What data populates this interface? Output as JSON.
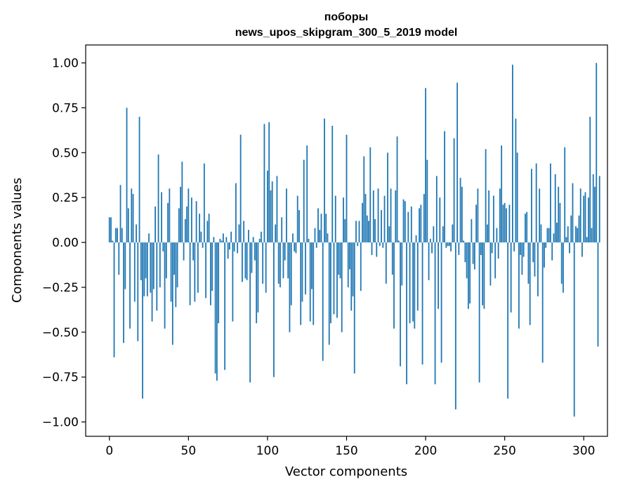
{
  "chart_data": {
    "type": "bar",
    "title": "поборы",
    "subtitle": "news_upos_skipgram_300_5_2019 model",
    "xlabel": "Vector components",
    "ylabel": "Components values",
    "xlim": [
      -15,
      315
    ],
    "ylim": [
      -1.08,
      1.1
    ],
    "x_ticks": [
      0,
      50,
      100,
      150,
      200,
      250,
      300
    ],
    "y_ticks": [
      -1.0,
      -0.75,
      -0.5,
      -0.25,
      0.0,
      0.25,
      0.5,
      0.75,
      1.0
    ],
    "x_tick_labels": [
      "0",
      "50",
      "100",
      "150",
      "200",
      "250",
      "300"
    ],
    "y_tick_labels": [
      "−1.00",
      "−0.75",
      "−0.50",
      "−0.25",
      "0.00",
      "0.25",
      "0.50",
      "0.75",
      "1.00"
    ],
    "bar_color": "#1f77b4",
    "values": [
      0.14,
      0.14,
      0.01,
      -0.64,
      0.08,
      0.08,
      -0.18,
      0.32,
      0.08,
      -0.56,
      -0.26,
      0.75,
      0.19,
      -0.48,
      0.3,
      0.27,
      -0.33,
      0.1,
      -0.55,
      0.7,
      -0.21,
      -0.87,
      -0.3,
      -0.2,
      -0.3,
      0.05,
      -0.28,
      -0.44,
      -0.26,
      0.2,
      -0.38,
      0.49,
      -0.25,
      0.28,
      -0.05,
      -0.48,
      -0.2,
      0.22,
      0.3,
      -0.33,
      -0.57,
      -0.18,
      -0.36,
      -0.25,
      0.19,
      0.31,
      0.45,
      -0.1,
      0.13,
      0.2,
      0.3,
      -0.35,
      0.25,
      -0.1,
      -0.33,
      0.23,
      -0.28,
      0.16,
      0.06,
      -0.03,
      0.44,
      -0.31,
      0.12,
      0.16,
      -0.35,
      -0.27,
      0.03,
      -0.73,
      -0.77,
      -0.45,
      0.02,
      0.01,
      0.05,
      -0.71,
      0.03,
      -0.09,
      -0.04,
      0.06,
      -0.44,
      -0.05,
      0.33,
      -0.06,
      0.1,
      0.6,
      -0.22,
      0.12,
      -0.2,
      -0.21,
      0.07,
      -0.78,
      -0.17,
      0.03,
      -0.1,
      -0.45,
      -0.39,
      0.02,
      0.06,
      -0.23,
      0.66,
      -0.28,
      0.4,
      0.67,
      0.29,
      0.34,
      -0.75,
      0.1,
      0.37,
      -0.23,
      -0.25,
      0.14,
      -0.2,
      -0.1,
      0.3,
      -0.2,
      -0.5,
      -0.35,
      0.05,
      -0.05,
      -0.06,
      0.26,
      0.18,
      -0.46,
      -0.33,
      0.46,
      -0.29,
      0.54,
      0.02,
      -0.44,
      -0.26,
      -0.46,
      0.08,
      -0.03,
      0.19,
      0.07,
      0.16,
      -0.66,
      0.69,
      0.16,
      0.05,
      -0.57,
      -0.45,
      0.65,
      -0.4,
      0.26,
      -0.42,
      -0.18,
      -0.2,
      -0.5,
      0.25,
      0.13,
      0.6,
      -0.25,
      -0.15,
      -0.38,
      -0.3,
      -0.73,
      0.12,
      -0.02,
      0.12,
      -0.27,
      0.22,
      0.48,
      0.27,
      0.15,
      0.12,
      0.53,
      -0.07,
      0.29,
      0.13,
      -0.08,
      0.3,
      -0.02,
      0.18,
      -0.03,
      0.26,
      -0.23,
      0.5,
      0.09,
      0.3,
      -0.18,
      -0.48,
      0.29,
      0.59,
      0.01,
      -0.69,
      -0.24,
      0.24,
      0.23,
      -0.79,
      0.17,
      -0.45,
      0.2,
      -0.44,
      -0.48,
      0.04,
      -0.38,
      0.19,
      0.21,
      -0.68,
      0.27,
      0.86,
      0.46,
      -0.21,
      0.02,
      -0.06,
      0.09,
      -0.79,
      0.37,
      -0.37,
      0.25,
      -0.67,
      0.09,
      0.62,
      -0.03,
      -0.02,
      -0.02,
      -0.05,
      0.1,
      0.58,
      -0.93,
      0.89,
      -0.07,
      0.36,
      0.31,
      0.01,
      -0.11,
      -0.2,
      -0.37,
      -0.34,
      0.13,
      -0.12,
      -0.15,
      0.21,
      0.3,
      -0.78,
      -0.07,
      -0.35,
      -0.37,
      0.52,
      0.1,
      0.29,
      -0.24,
      -0.06,
      0.26,
      -0.2,
      0.08,
      -0.09,
      0.3,
      0.54,
      0.21,
      0.22,
      0.19,
      -0.87,
      0.21,
      -0.39,
      0.99,
      -0.05,
      0.69,
      0.5,
      -0.48,
      -0.07,
      -0.18,
      -0.08,
      0.16,
      0.17,
      -0.23,
      -0.46,
      0.41,
      -0.11,
      -0.19,
      0.44,
      -0.3,
      0.3,
      0.1,
      -0.67,
      -0.14,
      -0.03,
      0.08,
      0.08,
      0.44,
      -0.1,
      0.05,
      0.38,
      0.11,
      0.31,
      0.22,
      -0.23,
      -0.28,
      0.53,
      0.03,
      0.09,
      -0.06,
      0.15,
      0.33,
      -0.97,
      0.09,
      0.08,
      0.15,
      0.3,
      -0.08,
      0.26,
      0.28,
      0.03,
      0.25,
      0.7,
      0.08,
      0.38,
      0.31,
      1.0,
      -0.58,
      0.37
    ]
  }
}
